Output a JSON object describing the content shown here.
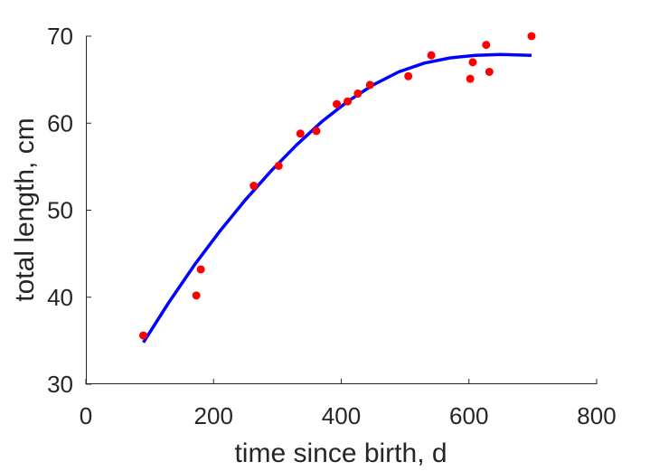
{
  "chart_data": {
    "type": "scatter",
    "xlabel": "time since birth, d",
    "ylabel": "total length, cm",
    "xlim": [
      0,
      800
    ],
    "ylim": [
      30,
      70
    ],
    "xticks": [
      "0",
      "200",
      "400",
      "600",
      "800"
    ],
    "yticks": [
      "30",
      "40",
      "50",
      "60",
      "70"
    ],
    "grid": false,
    "legend": "none",
    "series": [
      {
        "kind": "points",
        "color": "#ff0000",
        "x": [
          90,
          173,
          180,
          263,
          302,
          336,
          361,
          393,
          410,
          426,
          445,
          505,
          541,
          602,
          606,
          627,
          632,
          698
        ],
        "y": [
          35.6,
          40.2,
          43.2,
          52.8,
          55.1,
          58.8,
          59.1,
          62.2,
          62.5,
          63.4,
          64.4,
          65.4,
          67.8,
          65.1,
          67.0,
          69.0,
          65.9,
          70.0
        ]
      },
      {
        "kind": "fit-curve",
        "color": "#0000ff",
        "x": [
          90,
          130,
          170,
          210,
          250,
          290,
          330,
          370,
          410,
          450,
          490,
          530,
          570,
          610,
          650,
          698
        ],
        "y": [
          34.8,
          39.4,
          43.7,
          47.6,
          51.2,
          54.5,
          57.5,
          60.2,
          62.5,
          64.4,
          65.9,
          66.9,
          67.5,
          67.8,
          67.9,
          67.8
        ]
      }
    ]
  }
}
